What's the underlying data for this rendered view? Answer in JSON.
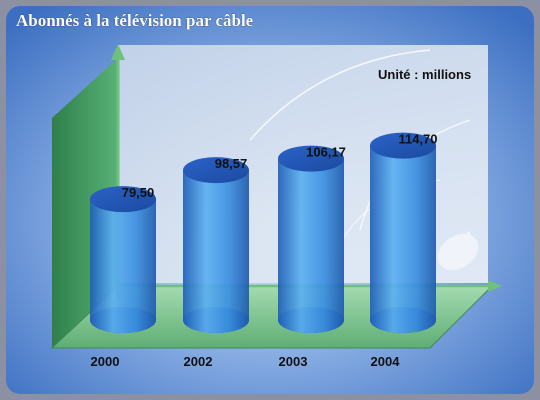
{
  "chart_data": {
    "type": "bar",
    "title": "Abonnés à la télévision par câble",
    "unit_label": "Unité : millions",
    "categories": [
      "2000",
      "2002",
      "2003",
      "2004"
    ],
    "values": [
      79.5,
      98.57,
      106.17,
      114.7
    ],
    "value_labels": [
      "79,50",
      "98,57",
      "106,17",
      "114,70"
    ],
    "xlabel": "",
    "ylabel": "",
    "ylim": [
      0,
      140
    ],
    "grid": false,
    "legend": "none"
  },
  "colors": {
    "panel_blue": "#4a7fd0",
    "back_wall": "#d8e4f2",
    "side_wall": "#3f9a60",
    "floor": "#7bc58f",
    "arrow": "#6ec07a",
    "cylinder_body": "#3d8fd8",
    "cylinder_top": "#2a66c0",
    "text": "#111111",
    "title_text": "#ffffff"
  }
}
